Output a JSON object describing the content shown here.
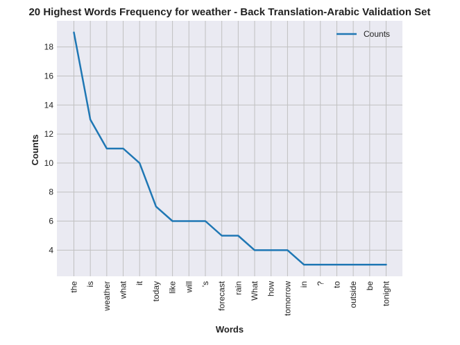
{
  "chart_data": {
    "type": "line",
    "title": "20 Highest Words Frequency for weather - Back Translation-Arabic Validation Set",
    "xlabel": "Words",
    "ylabel": "Counts",
    "categories": [
      "the",
      "is",
      "weather",
      "what",
      "it",
      "today",
      "like",
      "will",
      "'s",
      "forecast",
      "rain",
      "What",
      "how",
      "tomorrow",
      "in",
      "?",
      "to",
      "outside",
      "be",
      "tonight"
    ],
    "series": [
      {
        "name": "Counts",
        "color": "#1f77b4",
        "values": [
          19,
          13,
          11,
          11,
          10,
          7,
          6,
          6,
          6,
          5,
          5,
          4,
          4,
          4,
          3,
          3,
          3,
          3,
          3,
          3
        ]
      }
    ],
    "ylim": [
      2.2,
      19.8
    ],
    "yticks": [
      4,
      6,
      8,
      10,
      12,
      14,
      16,
      18
    ],
    "grid": true,
    "legend_position": "upper right",
    "background_color": "#eaeaf2",
    "grid_color": "#c0c0c0"
  }
}
